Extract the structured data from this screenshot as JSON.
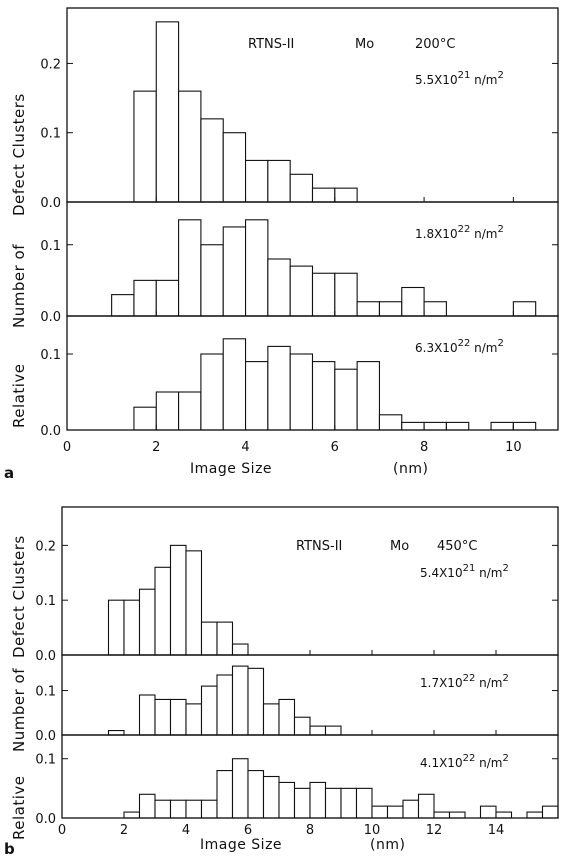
{
  "chart_data": [
    {
      "type": "bar",
      "figure_label": "a",
      "title_parts": {
        "source": "RTNS-II",
        "material": "Mo",
        "temperature": "200°C"
      },
      "xlabel": "Image Size",
      "xlabel_unit": "(nm)",
      "ylabel_parts": [
        "Relative",
        "Number of",
        "Defect Clusters"
      ],
      "xlim": [
        0,
        11
      ],
      "xticks": [
        0,
        2,
        4,
        6,
        8,
        10
      ],
      "bin_width": 0.5,
      "panels": [
        {
          "fluence": {
            "coef": "5.5",
            "exp": "21",
            "unit": "n/m",
            "unit_exp": "2"
          },
          "ylim": [
            0,
            0.28
          ],
          "yticks": [
            {
              "value": 0.0,
              "label": "0.0"
            },
            {
              "value": 0.1,
              "label": "0.1"
            },
            {
              "value": 0.2,
              "label": "0.2"
            }
          ],
          "bins": [
            {
              "start": 1.5,
              "value": 0.16
            },
            {
              "start": 2.0,
              "value": 0.26
            },
            {
              "start": 2.5,
              "value": 0.16
            },
            {
              "start": 3.0,
              "value": 0.12
            },
            {
              "start": 3.5,
              "value": 0.1
            },
            {
              "start": 4.0,
              "value": 0.06
            },
            {
              "start": 4.5,
              "value": 0.06
            },
            {
              "start": 5.0,
              "value": 0.04
            },
            {
              "start": 5.5,
              "value": 0.02
            },
            {
              "start": 6.0,
              "value": 0.02
            }
          ]
        },
        {
          "fluence": {
            "coef": "1.8",
            "exp": "22",
            "unit": "n/m",
            "unit_exp": "2"
          },
          "ylim": [
            0,
            0.16
          ],
          "yticks": [
            {
              "value": 0.0,
              "label": "0.0"
            },
            {
              "value": 0.1,
              "label": "0.1"
            }
          ],
          "bins": [
            {
              "start": 1.0,
              "value": 0.03
            },
            {
              "start": 1.5,
              "value": 0.05
            },
            {
              "start": 2.0,
              "value": 0.05
            },
            {
              "start": 2.5,
              "value": 0.135
            },
            {
              "start": 3.0,
              "value": 0.1
            },
            {
              "start": 3.5,
              "value": 0.125
            },
            {
              "start": 4.0,
              "value": 0.135
            },
            {
              "start": 4.5,
              "value": 0.08
            },
            {
              "start": 5.0,
              "value": 0.07
            },
            {
              "start": 5.5,
              "value": 0.06
            },
            {
              "start": 6.0,
              "value": 0.06
            },
            {
              "start": 6.5,
              "value": 0.02
            },
            {
              "start": 7.0,
              "value": 0.02
            },
            {
              "start": 7.5,
              "value": 0.04
            },
            {
              "start": 8.0,
              "value": 0.02
            },
            {
              "start": 10.0,
              "value": 0.02
            }
          ]
        },
        {
          "fluence": {
            "coef": "6.3",
            "exp": "22",
            "unit": "n/m",
            "unit_exp": "2"
          },
          "ylim": [
            0,
            0.15
          ],
          "yticks": [
            {
              "value": 0.0,
              "label": "0.0"
            },
            {
              "value": 0.1,
              "label": "0.1"
            }
          ],
          "bins": [
            {
              "start": 1.5,
              "value": 0.03
            },
            {
              "start": 2.0,
              "value": 0.05
            },
            {
              "start": 2.5,
              "value": 0.05
            },
            {
              "start": 3.0,
              "value": 0.1
            },
            {
              "start": 3.5,
              "value": 0.12
            },
            {
              "start": 4.0,
              "value": 0.09
            },
            {
              "start": 4.5,
              "value": 0.11
            },
            {
              "start": 5.0,
              "value": 0.1
            },
            {
              "start": 5.5,
              "value": 0.09
            },
            {
              "start": 6.0,
              "value": 0.08
            },
            {
              "start": 6.5,
              "value": 0.09
            },
            {
              "start": 7.0,
              "value": 0.02
            },
            {
              "start": 7.5,
              "value": 0.01
            },
            {
              "start": 8.0,
              "value": 0.01
            },
            {
              "start": 8.5,
              "value": 0.01
            },
            {
              "start": 9.5,
              "value": 0.01
            },
            {
              "start": 10.0,
              "value": 0.01
            }
          ]
        }
      ]
    },
    {
      "type": "bar",
      "figure_label": "b",
      "title_parts": {
        "source": "RTNS-II",
        "material": "Mo",
        "temperature": "450°C"
      },
      "xlabel": "Image Size",
      "xlabel_unit": "(nm)",
      "ylabel_parts": [
        "Relative",
        "Number of",
        "Defect Clusters"
      ],
      "xlim": [
        0,
        16
      ],
      "xticks": [
        0,
        2,
        4,
        6,
        8,
        10,
        12,
        14
      ],
      "bin_width": 0.5,
      "panels": [
        {
          "fluence": {
            "coef": "5.4",
            "exp": "21",
            "unit": "n/m",
            "unit_exp": "2"
          },
          "ylim": [
            0,
            0.27
          ],
          "yticks": [
            {
              "value": 0.0,
              "label": "0.0"
            },
            {
              "value": 0.1,
              "label": "0.1"
            },
            {
              "value": 0.2,
              "label": "0.2"
            }
          ],
          "bins": [
            {
              "start": 1.5,
              "value": 0.1
            },
            {
              "start": 2.0,
              "value": 0.1
            },
            {
              "start": 2.5,
              "value": 0.12
            },
            {
              "start": 3.0,
              "value": 0.16
            },
            {
              "start": 3.5,
              "value": 0.2
            },
            {
              "start": 4.0,
              "value": 0.19
            },
            {
              "start": 4.5,
              "value": 0.06
            },
            {
              "start": 5.0,
              "value": 0.06
            },
            {
              "start": 5.5,
              "value": 0.02
            }
          ]
        },
        {
          "fluence": {
            "coef": "1.7",
            "exp": "22",
            "unit": "n/m",
            "unit_exp": "2"
          },
          "ylim": [
            0,
            0.18
          ],
          "yticks": [
            {
              "value": 0.0,
              "label": "0.0"
            },
            {
              "value": 0.1,
              "label": "0.1"
            }
          ],
          "bins": [
            {
              "start": 1.5,
              "value": 0.01
            },
            {
              "start": 2.5,
              "value": 0.09
            },
            {
              "start": 3.0,
              "value": 0.08
            },
            {
              "start": 3.5,
              "value": 0.08
            },
            {
              "start": 4.0,
              "value": 0.07
            },
            {
              "start": 4.5,
              "value": 0.11
            },
            {
              "start": 5.0,
              "value": 0.135
            },
            {
              "start": 5.5,
              "value": 0.155
            },
            {
              "start": 6.0,
              "value": 0.15
            },
            {
              "start": 6.5,
              "value": 0.07
            },
            {
              "start": 7.0,
              "value": 0.08
            },
            {
              "start": 7.5,
              "value": 0.04
            },
            {
              "start": 8.0,
              "value": 0.02
            },
            {
              "start": 8.5,
              "value": 0.02
            }
          ]
        },
        {
          "fluence": {
            "coef": "4.1",
            "exp": "22",
            "unit": "n/m",
            "unit_exp": "2"
          },
          "ylim": [
            0,
            0.14
          ],
          "yticks": [
            {
              "value": 0.0,
              "label": "0.0"
            },
            {
              "value": 0.1,
              "label": "0.1"
            }
          ],
          "bins": [
            {
              "start": 2.0,
              "value": 0.01
            },
            {
              "start": 2.5,
              "value": 0.04
            },
            {
              "start": 3.0,
              "value": 0.03
            },
            {
              "start": 3.5,
              "value": 0.03
            },
            {
              "start": 4.0,
              "value": 0.03
            },
            {
              "start": 4.5,
              "value": 0.03
            },
            {
              "start": 5.0,
              "value": 0.08
            },
            {
              "start": 5.5,
              "value": 0.1
            },
            {
              "start": 6.0,
              "value": 0.08
            },
            {
              "start": 6.5,
              "value": 0.07
            },
            {
              "start": 7.0,
              "value": 0.06
            },
            {
              "start": 7.5,
              "value": 0.05
            },
            {
              "start": 8.0,
              "value": 0.06
            },
            {
              "start": 8.5,
              "value": 0.05
            },
            {
              "start": 9.0,
              "value": 0.05
            },
            {
              "start": 9.5,
              "value": 0.05
            },
            {
              "start": 10.0,
              "value": 0.02
            },
            {
              "start": 10.5,
              "value": 0.02
            },
            {
              "start": 11.0,
              "value": 0.03
            },
            {
              "start": 11.5,
              "value": 0.04
            },
            {
              "start": 12.0,
              "value": 0.01
            },
            {
              "start": 12.5,
              "value": 0.01
            },
            {
              "start": 13.5,
              "value": 0.02
            },
            {
              "start": 14.0,
              "value": 0.01
            },
            {
              "start": 15.0,
              "value": 0.01
            },
            {
              "start": 15.5,
              "value": 0.02
            }
          ]
        }
      ]
    }
  ]
}
